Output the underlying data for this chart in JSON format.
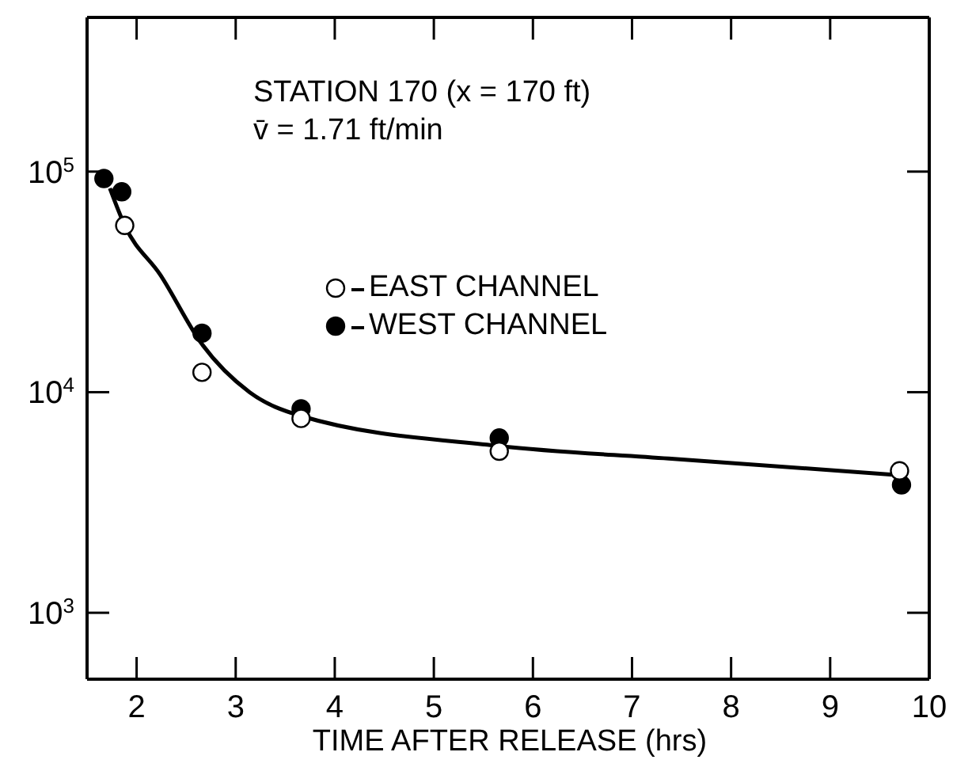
{
  "chart_data": {
    "type": "scatter",
    "xlabel": "TIME AFTER RELEASE (hrs)",
    "annotations": [
      "STATION 170 (x = 170 ft)",
      "v̄ = 1.71 ft/min"
    ],
    "xlim": [
      1.5,
      10
    ],
    "xticks": [
      2,
      3,
      4,
      5,
      6,
      7,
      8,
      9,
      10
    ],
    "ylim": [
      500,
      500000
    ],
    "yticks": [
      {
        "value": 1000,
        "label": "10$^{3}$"
      },
      {
        "value": 10000,
        "label": "10$^{4}$"
      },
      {
        "value": 100000,
        "label": "10$^{5}$"
      }
    ],
    "log": "y",
    "legend": "top",
    "marker": "circle",
    "grid": false,
    "series": [
      {
        "name": "EAST CHANNEL",
        "color": "#ffffff",
        "x": [
          1.88,
          2.66,
          3.66,
          5.66,
          9.7
        ],
        "values": [
          57000,
          12300,
          7600,
          5400,
          4400
        ]
      },
      {
        "name": "WEST CHANNEL",
        "color": "#000000",
        "x": [
          1.67,
          1.85,
          2.66,
          3.66,
          5.66,
          9.72
        ],
        "values": [
          93000,
          81000,
          18500,
          8400,
          6200,
          3800
        ]
      },
      {
        "type": "line",
        "color": "#000000",
        "marker": "none",
        "x": [
          1.73,
          1.88,
          2.24,
          2.66,
          3.14,
          3.66,
          5.66,
          7.37,
          9.72
        ],
        "values": [
          84000,
          57000,
          34000,
          16500,
          10000,
          7800,
          5700,
          5000,
          4200
        ]
      }
    ]
  }
}
